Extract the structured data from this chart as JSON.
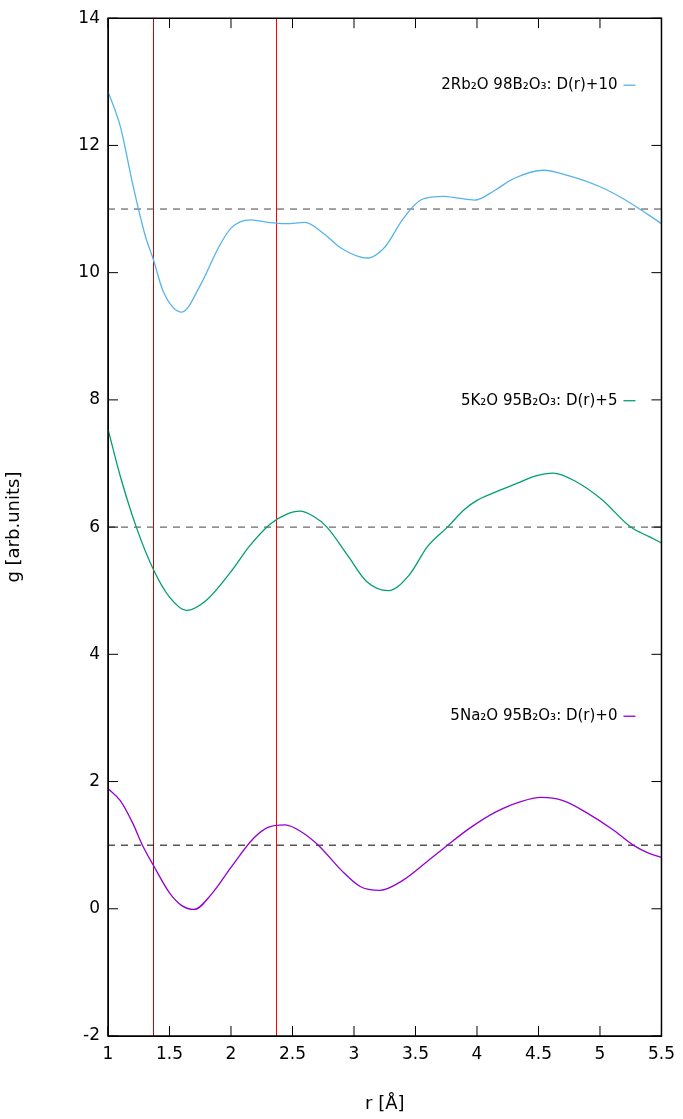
{
  "chart_data": {
    "type": "line",
    "xlabel": "r [Å]",
    "ylabel": "g [arb.units]",
    "xlim": [
      1,
      5.5
    ],
    "xticks": [
      1,
      1.5,
      2,
      2.5,
      3,
      3.5,
      4,
      4.5,
      5,
      5.5
    ],
    "ylim": [
      -2,
      14
    ],
    "yticks": [
      -2,
      0,
      2,
      4,
      6,
      8,
      10,
      12,
      14
    ],
    "grid": false,
    "legend": "top right",
    "marker": "none",
    "line_style": "solid",
    "series": [
      {
        "name": "2Rb₂O 98B₂O₃: D(r)+10",
        "color": "#56b4e9",
        "x": [
          1,
          1.1,
          1.2,
          1.3,
          1.37,
          1.45,
          1.6,
          1.75,
          1.9,
          2.0,
          2.16,
          2.3,
          2.45,
          2.6,
          2.75,
          2.9,
          3.11,
          3.25,
          3.4,
          3.55,
          3.73,
          3.85,
          3.98,
          4.15,
          4.3,
          4.54,
          4.75,
          5.0,
          5.2,
          5.4,
          5.5
        ],
        "values": [
          12.85,
          12.3,
          11.4,
          10.6,
          10.2,
          9.7,
          9.38,
          9.8,
          10.4,
          10.7,
          10.83,
          10.79,
          10.77,
          10.79,
          10.62,
          10.38,
          10.23,
          10.4,
          10.85,
          11.15,
          11.2,
          11.17,
          11.14,
          11.3,
          11.48,
          11.61,
          11.52,
          11.35,
          11.15,
          10.9,
          10.77
        ]
      },
      {
        "name": "5K₂O 95B₂O₃: D(r)+5",
        "color": "#009e73",
        "x": [
          1,
          1.1,
          1.23,
          1.37,
          1.5,
          1.64,
          1.8,
          2.0,
          2.15,
          2.32,
          2.45,
          2.56,
          2.67,
          2.78,
          2.95,
          3.1,
          3.28,
          3.45,
          3.6,
          3.76,
          3.9,
          4.0,
          4.15,
          4.33,
          4.47,
          4.62,
          4.8,
          5.01,
          5.25,
          5.4,
          5.5
        ],
        "values": [
          7.54,
          6.8,
          6.0,
          5.33,
          4.9,
          4.69,
          4.85,
          5.3,
          5.7,
          6.05,
          6.2,
          6.25,
          6.17,
          6.0,
          5.55,
          5.15,
          5.0,
          5.25,
          5.7,
          6.0,
          6.28,
          6.42,
          6.55,
          6.69,
          6.8,
          6.85,
          6.72,
          6.44,
          6.0,
          5.85,
          5.75
        ]
      },
      {
        "name": "5Na₂O 95B₂O₃: D(r)+0",
        "color": "#9400d3",
        "x": [
          1,
          1.1,
          1.2,
          1.28,
          1.37,
          1.5,
          1.6,
          1.7,
          1.85,
          2.0,
          2.18,
          2.3,
          2.44,
          2.58,
          2.71,
          2.9,
          3.05,
          3.21,
          3.4,
          3.6,
          3.76,
          3.95,
          4.15,
          4.35,
          4.52,
          4.7,
          4.9,
          5.1,
          5.27,
          5.4,
          5.5
        ],
        "values": [
          1.89,
          1.7,
          1.35,
          1.0,
          0.68,
          0.25,
          0.05,
          -0.01,
          0.25,
          0.65,
          1.1,
          1.28,
          1.32,
          1.2,
          1.0,
          0.6,
          0.35,
          0.29,
          0.45,
          0.75,
          1.0,
          1.28,
          1.52,
          1.68,
          1.75,
          1.7,
          1.5,
          1.25,
          1.0,
          0.87,
          0.81
        ]
      }
    ],
    "ref_lines": [
      {
        "axis": "x",
        "value": 1.37,
        "color": "#d40000",
        "line_style": "solid"
      },
      {
        "axis": "x",
        "value": 2.37,
        "color": "#ff0000",
        "line_style": "solid"
      },
      {
        "axis": "y",
        "value": 11,
        "color": "#444444",
        "line_style": "dashed"
      },
      {
        "axis": "y",
        "value": 6,
        "color": "#444444",
        "line_style": "dashed"
      },
      {
        "axis": "y",
        "value": 1,
        "color": "#000000",
        "line_style": "dashed"
      }
    ]
  }
}
